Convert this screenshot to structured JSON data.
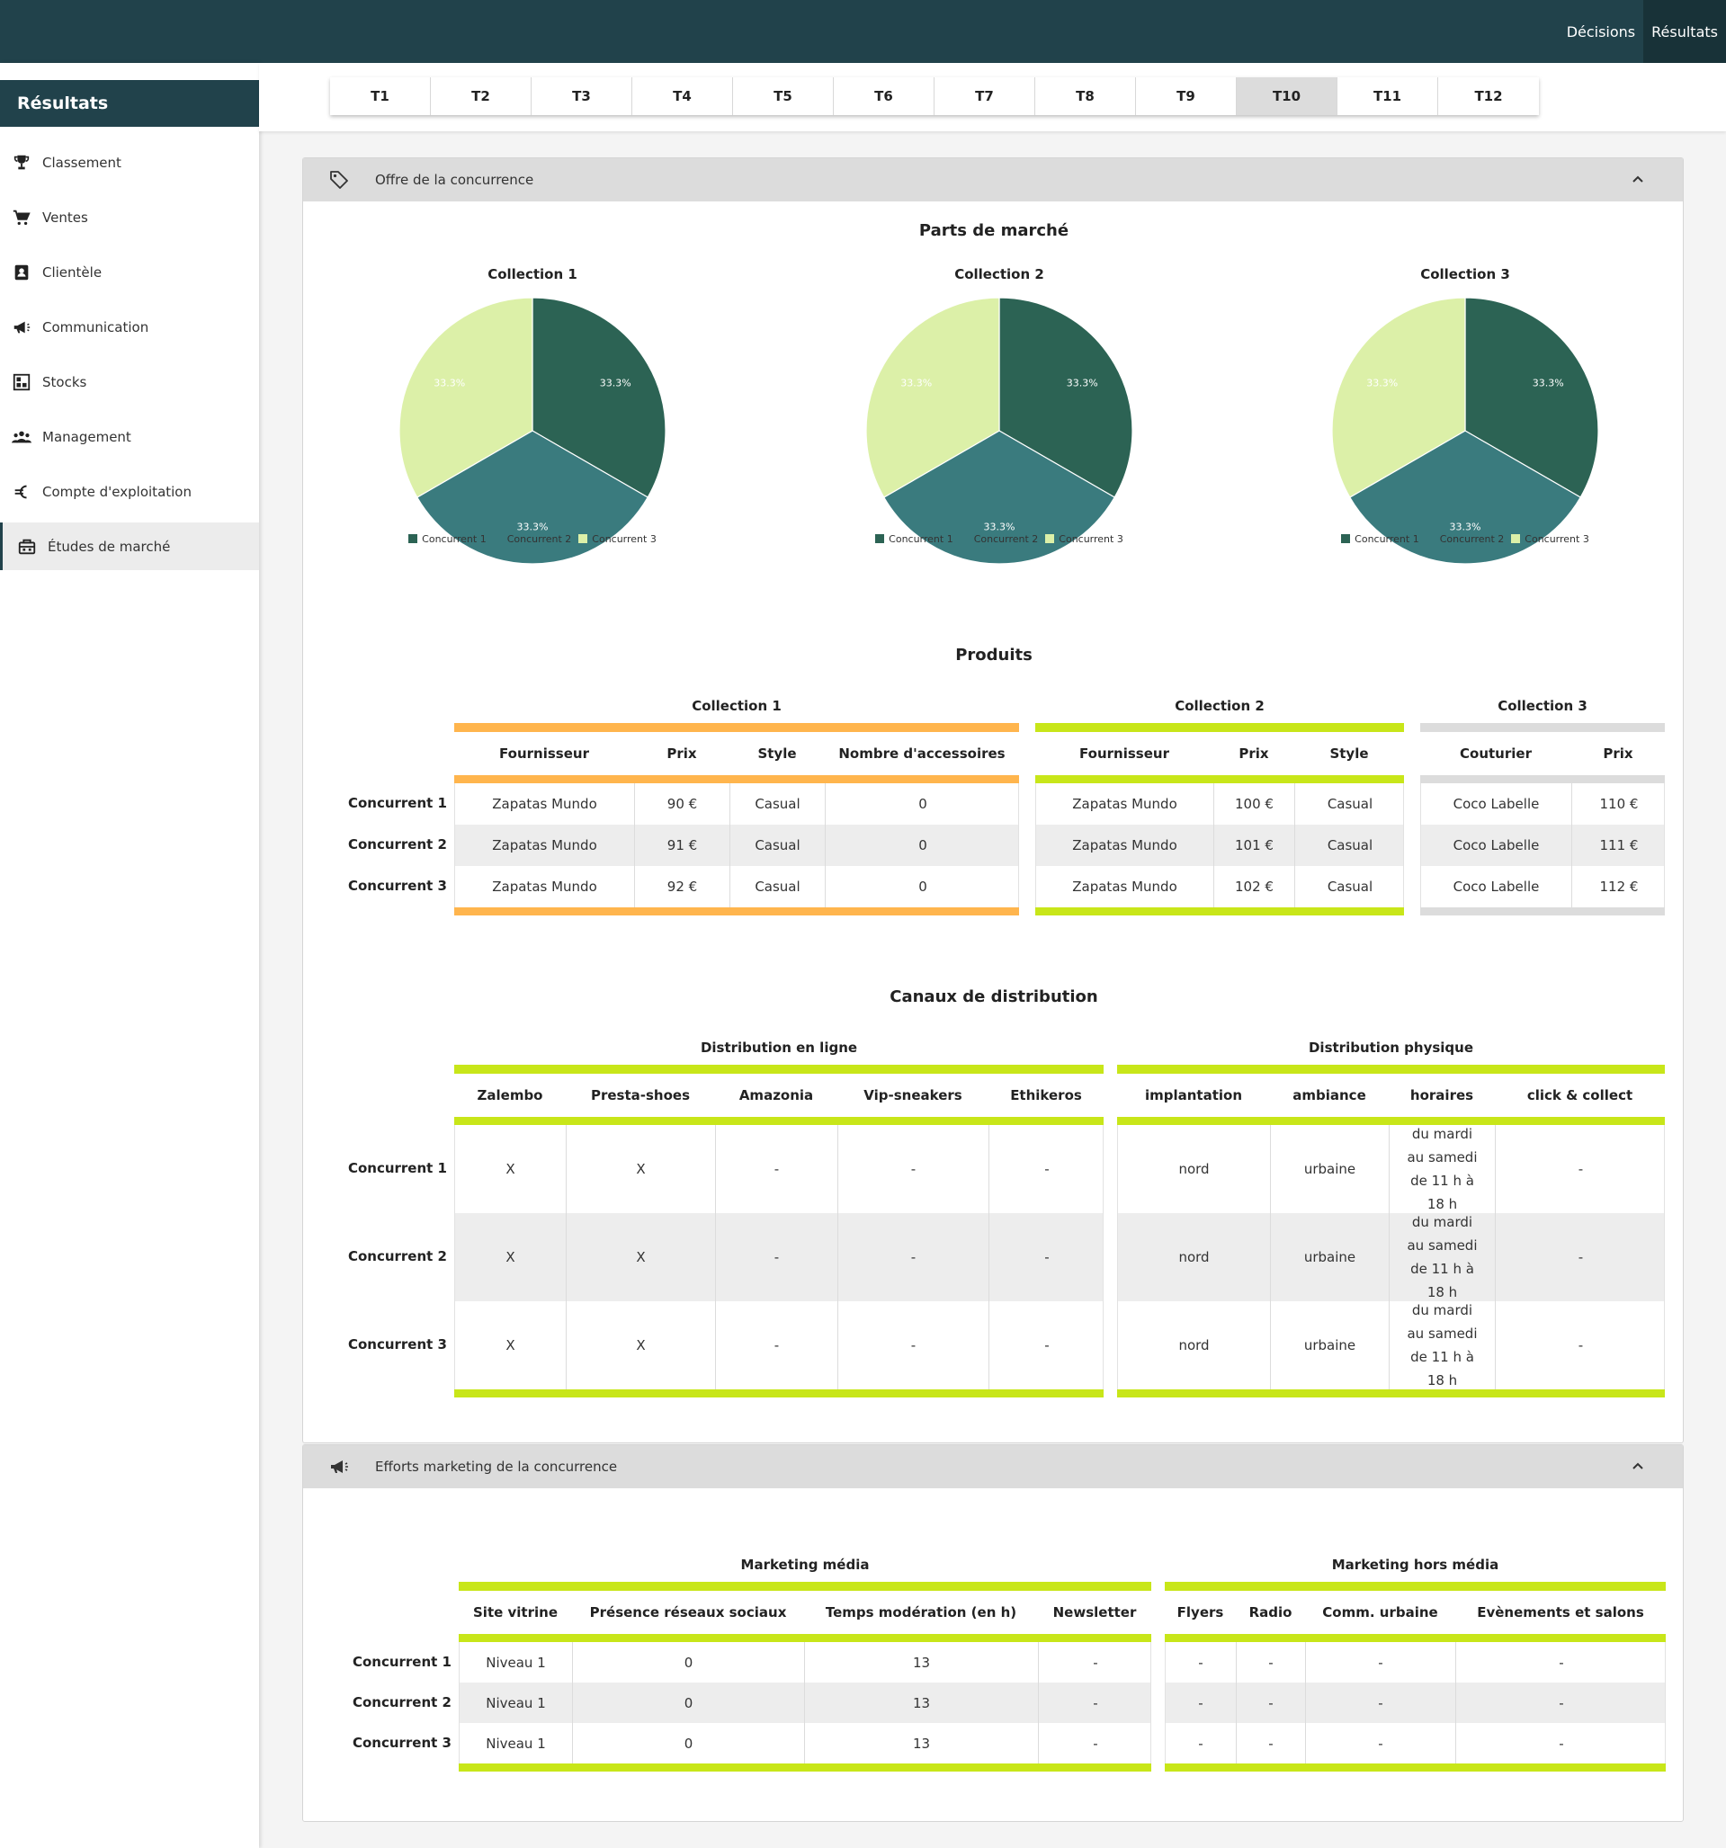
{
  "topnav": {
    "decisions": "Décisions",
    "resultats": "Résultats"
  },
  "sidebar": {
    "title": "Résultats",
    "items": [
      {
        "label": "Classement",
        "icon": "trophy-icon"
      },
      {
        "label": "Ventes",
        "icon": "cart-icon"
      },
      {
        "label": "Clientèle",
        "icon": "contact-card-icon"
      },
      {
        "label": "Communication",
        "icon": "megaphone-icon"
      },
      {
        "label": "Stocks",
        "icon": "warehouse-icon"
      },
      {
        "label": "Management",
        "icon": "users-icon"
      },
      {
        "label": "Compte d'exploitation",
        "icon": "euro-icon"
      },
      {
        "label": "Études de marché",
        "icon": "market-study-icon"
      }
    ],
    "active_index": 7
  },
  "tabs": [
    "T1",
    "T2",
    "T3",
    "T4",
    "T5",
    "T6",
    "T7",
    "T8",
    "T9",
    "T10",
    "T11",
    "T12"
  ],
  "active_tab": "T10",
  "panel1": {
    "title": "Offre de la concurrence",
    "market_share_title": "Parts de marché",
    "products_title": "Produits",
    "channels_title": "Canaux de distribution"
  },
  "chart_data": [
    {
      "type": "pie",
      "title": "Collection 1",
      "categories": [
        "Concurrent 1",
        "Concurrent 2",
        "Concurrent 3"
      ],
      "values": [
        33.3,
        33.3,
        33.3
      ],
      "labels": [
        "33.3%",
        "33.3%",
        "33.3%"
      ],
      "colors": [
        "#2c6354",
        "#3a7b7e",
        "#dcf0a8"
      ],
      "legend": "bottom"
    },
    {
      "type": "pie",
      "title": "Collection 2",
      "categories": [
        "Concurrent 1",
        "Concurrent 2",
        "Concurrent 3"
      ],
      "values": [
        33.3,
        33.3,
        33.3
      ],
      "labels": [
        "33.3%",
        "33.3%",
        "33.3%"
      ],
      "colors": [
        "#2c6354",
        "#3a7b7e",
        "#dcf0a8"
      ],
      "legend": "bottom"
    },
    {
      "type": "pie",
      "title": "Collection 3",
      "categories": [
        "Concurrent 1",
        "Concurrent 2",
        "Concurrent 3"
      ],
      "values": [
        33.3,
        33.3,
        33.3
      ],
      "labels": [
        "33.3%",
        "33.3%",
        "33.3%"
      ],
      "colors": [
        "#2c6354",
        "#3a7b7e",
        "#dcf0a8"
      ],
      "legend": "bottom"
    }
  ],
  "row_labels": [
    "Concurrent 1",
    "Concurrent 2",
    "Concurrent 3"
  ],
  "products": {
    "collections": [
      {
        "title": "Collection 1",
        "color": "#ffb54d",
        "headers": [
          "Fournisseur",
          "Prix",
          "Style",
          "Nombre d'accessoires"
        ],
        "rows": [
          [
            "Zapatas Mundo",
            "90 €",
            "Casual",
            "0"
          ],
          [
            "Zapatas Mundo",
            "91 €",
            "Casual",
            "0"
          ],
          [
            "Zapatas Mundo",
            "92 €",
            "Casual",
            "0"
          ]
        ]
      },
      {
        "title": "Collection 2",
        "color": "#c8e619",
        "headers": [
          "Fournisseur",
          "Prix",
          "Style"
        ],
        "rows": [
          [
            "Zapatas Mundo",
            "100 €",
            "Casual"
          ],
          [
            "Zapatas Mundo",
            "101 €",
            "Casual"
          ],
          [
            "Zapatas Mundo",
            "102 €",
            "Casual"
          ]
        ]
      },
      {
        "title": "Collection 3",
        "color": "#dcdcdc",
        "headers": [
          "Couturier",
          "Prix"
        ],
        "rows": [
          [
            "Coco Labelle",
            "110 €"
          ],
          [
            "Coco Labelle",
            "111 €"
          ],
          [
            "Coco Labelle",
            "112 €"
          ]
        ]
      }
    ]
  },
  "channels": {
    "groups": [
      {
        "title": "Distribution en ligne",
        "headers": [
          "Zalembo",
          "Presta-shoes",
          "Amazonia",
          "Vip-sneakers",
          "Ethikeros"
        ],
        "rows": [
          [
            "X",
            "X",
            "-",
            "-",
            "-"
          ],
          [
            "X",
            "X",
            "-",
            "-",
            "-"
          ],
          [
            "X",
            "X",
            "-",
            "-",
            "-"
          ]
        ]
      },
      {
        "title": "Distribution physique",
        "headers": [
          "implantation",
          "ambiance",
          "horaires",
          "click & collect"
        ],
        "rows": [
          [
            "nord",
            "urbaine",
            "du mardi au samedi de 11 h à 18 h",
            "-"
          ],
          [
            "nord",
            "urbaine",
            "du mardi au samedi de 11 h à 18 h",
            "-"
          ],
          [
            "nord",
            "urbaine",
            "du mardi au samedi de 11 h à 18 h",
            "-"
          ]
        ]
      }
    ],
    "accent": "#c8e619"
  },
  "panel2": {
    "title": "Efforts marketing de la concurrence",
    "groups": [
      {
        "title": "Marketing média",
        "headers": [
          "Site vitrine",
          "Présence réseaux sociaux",
          "Temps modération (en h)",
          "Newsletter"
        ],
        "rows": [
          [
            "Niveau 1",
            "0",
            "13",
            "-"
          ],
          [
            "Niveau 1",
            "0",
            "13",
            "-"
          ],
          [
            "Niveau 1",
            "0",
            "13",
            "-"
          ]
        ]
      },
      {
        "title": "Marketing hors média",
        "headers": [
          "Flyers",
          "Radio",
          "Comm. urbaine",
          "Evènements et salons"
        ],
        "rows": [
          [
            "-",
            "-",
            "-",
            "-"
          ],
          [
            "-",
            "-",
            "-",
            "-"
          ],
          [
            "-",
            "-",
            "-",
            "-"
          ]
        ]
      }
    ]
  }
}
